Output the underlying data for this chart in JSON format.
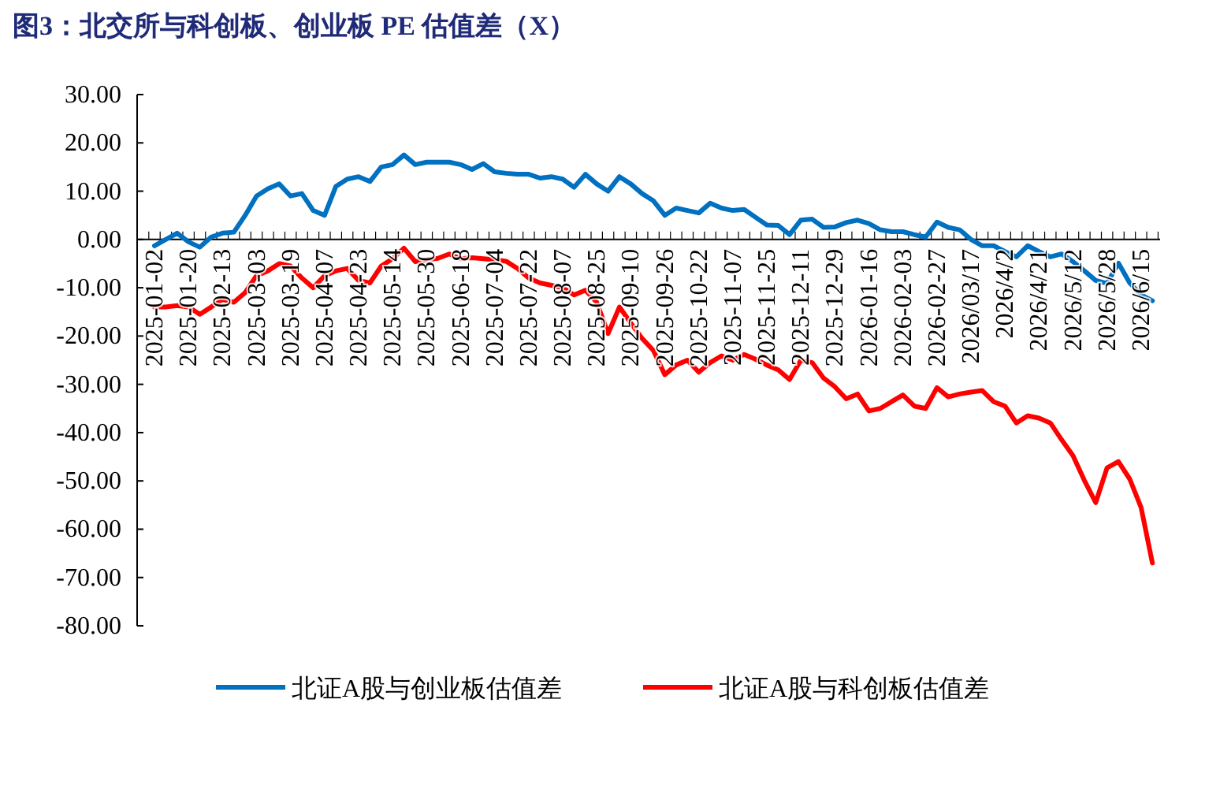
{
  "chart_data": {
    "type": "line",
    "title": "图3：北交所与科创板、创业板 PE 估值差（X）",
    "categories": [
      "2025-01-02",
      null,
      null,
      "2025-01-20",
      null,
      null,
      "2025-02-13",
      null,
      null,
      "2025-03-03",
      null,
      null,
      "2025-03-19",
      null,
      null,
      "2025-04-07",
      null,
      null,
      "2025-04-23",
      null,
      null,
      "2025-05-14",
      null,
      null,
      "2025-05-30",
      null,
      null,
      "2025-06-18",
      null,
      null,
      "2025-07-04",
      null,
      null,
      "2025-07-22",
      null,
      null,
      "2025-08-07",
      null,
      null,
      "2025-08-25",
      null,
      null,
      "2025-09-10",
      null,
      null,
      "2025-09-26",
      null,
      null,
      "2025-10-22",
      null,
      null,
      "2025-11-07",
      null,
      null,
      "2025-11-25",
      null,
      null,
      "2025-12-11",
      null,
      null,
      "2025-12-29",
      null,
      null,
      "2026-01-16",
      null,
      null,
      "2026-02-03",
      null,
      null,
      "2026-02-27",
      null,
      null,
      "2026/03/17",
      null,
      null,
      "2026/4/2",
      null,
      null,
      "2026/4/21",
      null,
      null,
      "2026/5/12",
      null,
      null,
      "2026/5/28",
      null,
      null,
      "2026/6/15",
      null
    ],
    "series": [
      {
        "name": "北证A股与创业板估值差",
        "color": "#0070c0",
        "values": [
          -1.3,
          0,
          1.3,
          -0.5,
          -1.6,
          0.5,
          1.3,
          1.5,
          5,
          9,
          10.5,
          11.5,
          9,
          9.5,
          6,
          5,
          11,
          12.5,
          13,
          12,
          15,
          15.5,
          17.5,
          15.5,
          16,
          16,
          16,
          15.5,
          14.5,
          15.7,
          14,
          13.7,
          13.5,
          13.5,
          12.7,
          13,
          12.5,
          10.8,
          13.5,
          11.5,
          10,
          13,
          11.5,
          9.5,
          8,
          5,
          6.5,
          6,
          5.5,
          7.5,
          6.5,
          6,
          6.2,
          4.6,
          3,
          2.9,
          1,
          4,
          4.2,
          2.5,
          2.6,
          3.5,
          4,
          3.3,
          2,
          1.6,
          1.6,
          1,
          0.5,
          3.6,
          2.5,
          2,
          0,
          -1.3,
          -1.3,
          -2.5,
          -3.6,
          -1.3,
          -2.5,
          -3.6,
          -3,
          -4.6,
          -6.5,
          -8.5,
          -9.1,
          -4.9,
          -9,
          -11.5,
          -12.7
        ]
      },
      {
        "name": "北证A股与科创板估值差",
        "color": "#ff0000",
        "values": [
          -14,
          -14,
          -13.7,
          -14,
          -15.5,
          -14,
          -12.4,
          -13,
          -11,
          -7.5,
          -6.5,
          -5,
          -5.5,
          -8,
          -10,
          -7.5,
          -6.5,
          -6,
          -8.5,
          -9,
          -5.5,
          -4,
          -1.8,
          -4.6,
          -4.2,
          -3.9,
          -3,
          -4,
          -3.8,
          -4,
          -4.2,
          -4.5,
          -6,
          -8,
          -9,
          -9.5,
          -10,
          -11.5,
          -10.5,
          -13,
          -19.5,
          -14,
          -17.3,
          -20.5,
          -23,
          -28,
          -26,
          -25,
          -27.5,
          -25.5,
          -24.1,
          -25,
          -23.8,
          -24.8,
          -26,
          -27,
          -29,
          -25,
          -25.5,
          -28.7,
          -30.5,
          -33,
          -32,
          -35.5,
          -35,
          -33.6,
          -32.2,
          -34.5,
          -35,
          -30.7,
          -32.6,
          -32,
          -31.6,
          -31.3,
          -33.6,
          -34.5,
          -38,
          -36.5,
          -37,
          -38,
          -41.5,
          -44.8,
          -49.9,
          -54.5,
          -47.3,
          -46,
          -49.6,
          -55.5,
          -67
        ]
      }
    ],
    "ylim": [
      -80,
      30
    ],
    "yticks": [
      {
        "value": 30,
        "label": "30.00"
      },
      {
        "value": 20,
        "label": "20.00"
      },
      {
        "value": 10,
        "label": "10.00"
      },
      {
        "value": 0,
        "label": "0.00"
      },
      {
        "value": -10,
        "label": "-10.00"
      },
      {
        "value": -20,
        "label": "-20.00"
      },
      {
        "value": -30,
        "label": "-30.00"
      },
      {
        "value": -40,
        "label": "-40.00"
      },
      {
        "value": -50,
        "label": "-50.00"
      },
      {
        "value": -60,
        "label": "-60.00"
      },
      {
        "value": -70,
        "label": "-70.00"
      },
      {
        "value": -80,
        "label": "-80.00"
      }
    ],
    "grid": false,
    "legend": "bottom"
  }
}
